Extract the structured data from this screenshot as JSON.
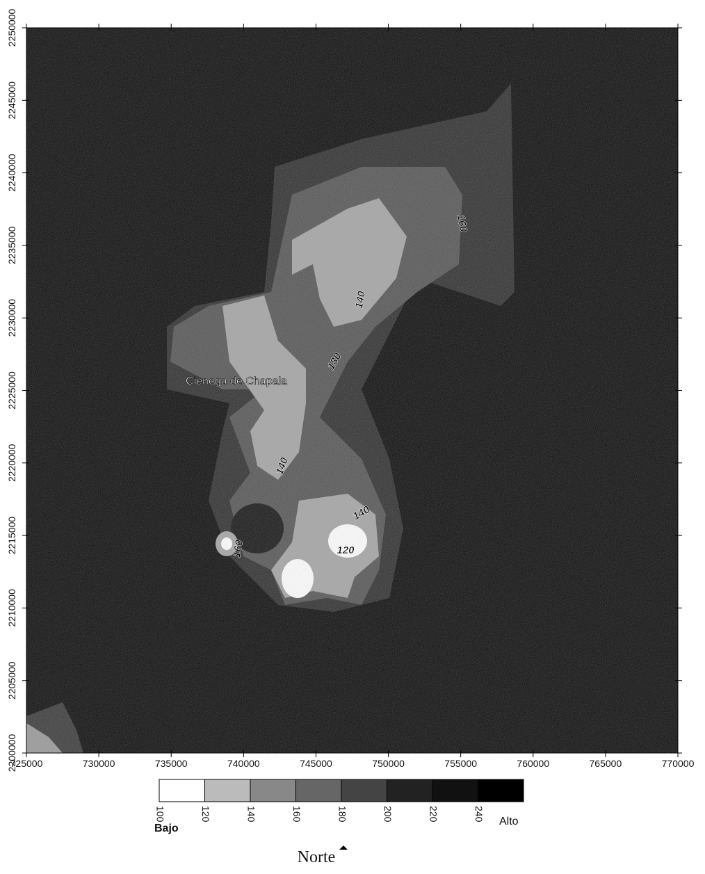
{
  "map": {
    "x_ticks": [
      725000,
      730000,
      735000,
      740000,
      745000,
      750000,
      755000,
      760000,
      765000,
      770000
    ],
    "y_ticks": [
      2200000,
      2205000,
      2210000,
      2215000,
      2220000,
      2225000,
      2230000,
      2235000,
      2240000,
      2245000,
      2250000
    ],
    "place_labels": [
      "Cienega de Chapala"
    ],
    "contour_labels": [
      "140",
      "140",
      "120",
      "140",
      "160",
      "180",
      "160"
    ],
    "legend": {
      "levels": [
        100,
        120,
        140,
        160,
        180,
        200,
        220,
        240
      ],
      "low_label": "Bajo",
      "high_label": "Alto"
    },
    "north_label": "Norte"
  }
}
